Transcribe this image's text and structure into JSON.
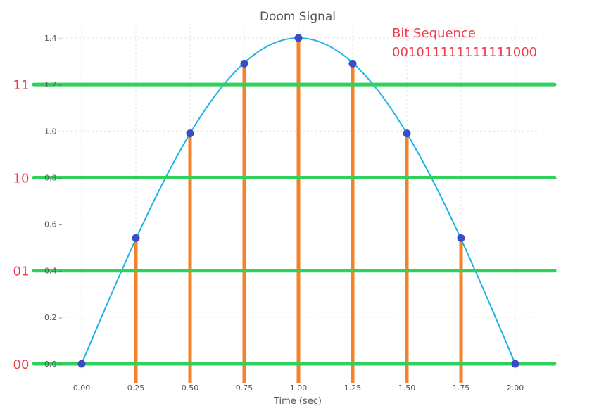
{
  "chart_data": {
    "type": "line",
    "title": "Doom Signal",
    "xlabel": "Time (sec)",
    "ylabel": "",
    "xlim": [
      -0.15,
      2.1
    ],
    "ylim": [
      0,
      1.43
    ],
    "x_ticks": [
      0.0,
      0.25,
      0.5,
      0.75,
      1.0,
      1.25,
      1.5,
      1.75,
      2.0
    ],
    "x_tick_labels": [
      "0.00",
      "0.25",
      "0.50",
      "0.75",
      "1.00",
      "1.25",
      "1.50",
      "1.75",
      "2.00"
    ],
    "y_ticks": [
      0.0,
      0.2,
      0.4,
      0.6,
      0.8,
      1.0,
      1.2,
      1.4
    ],
    "y_tick_labels": [
      "0.0",
      "0.2",
      "0.4",
      "0.6",
      "0.8",
      "1.0",
      "1.2",
      "1.4"
    ],
    "grid": true,
    "curve": {
      "function": "1.4 * sin(pi * t / 2)",
      "x_range": [
        0,
        2
      ],
      "color": "#1fb3e8"
    },
    "samples": {
      "x": [
        0.0,
        0.25,
        0.5,
        0.75,
        1.0,
        1.25,
        1.5,
        1.75,
        2.0
      ],
      "y": [
        0.0,
        0.54,
        0.99,
        1.29,
        1.4,
        1.29,
        0.99,
        0.54,
        0.0
      ],
      "stem_color": "#f5822a",
      "marker_color": "#3a4cc4"
    },
    "quantization_levels": [
      {
        "code": "00",
        "y": 0.0
      },
      {
        "code": "01",
        "y": 0.4
      },
      {
        "code": "10",
        "y": 0.8
      },
      {
        "code": "11",
        "y": 1.2
      }
    ],
    "level_line_color": "#2fd15a",
    "annotation": {
      "label": "Bit Sequence",
      "value": "001011111111111000"
    },
    "annotation_color": "#ee3b4b"
  }
}
